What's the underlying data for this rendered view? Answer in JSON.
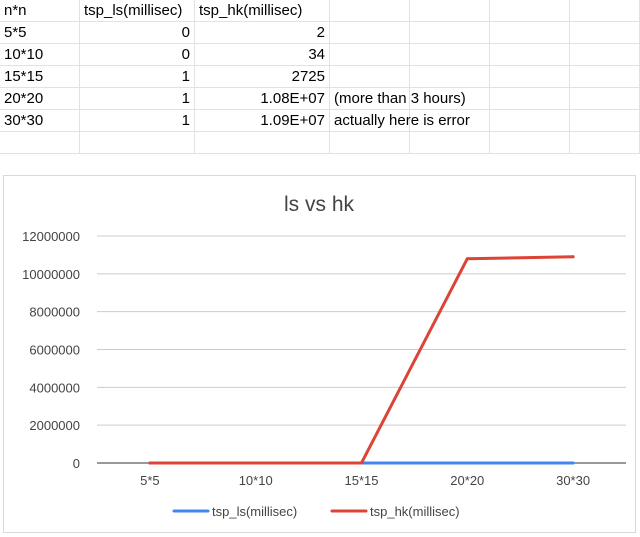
{
  "sheet": {
    "header": [
      "n*n",
      "tsp_ls(millisec)",
      "tsp_hk(millisec)",
      "",
      "",
      "",
      "",
      ""
    ],
    "rows": [
      [
        "5*5",
        "0",
        "2",
        "",
        "",
        "",
        "",
        ""
      ],
      [
        "10*10",
        "0",
        "34",
        "",
        "",
        "",
        "",
        ""
      ],
      [
        "15*15",
        "1",
        "2725",
        "",
        "",
        "",
        "",
        ""
      ],
      [
        "20*20",
        "1",
        "1.08E+07",
        "(more than 3 hours)",
        "",
        "",
        "",
        ""
      ],
      [
        "30*30",
        "1",
        "1.09E+07",
        "actually here is error",
        "",
        "",
        "",
        ""
      ],
      [
        "",
        "",
        "",
        "",
        "",
        "",
        "",
        ""
      ]
    ]
  },
  "chart_data": {
    "type": "line",
    "title": "ls vs hk",
    "categories": [
      "5*5",
      "10*10",
      "15*15",
      "20*20",
      "30*30"
    ],
    "series": [
      {
        "name": "tsp_ls(millisec)",
        "values": [
          0,
          0,
          1,
          1,
          1
        ],
        "color": "#4285f4"
      },
      {
        "name": "tsp_hk(millisec)",
        "values": [
          2,
          34,
          2725,
          10800000,
          10900000
        ],
        "color": "#db4437"
      }
    ],
    "yticks": [
      0,
      2000000,
      4000000,
      6000000,
      8000000,
      10000000,
      12000000
    ],
    "ylim": [
      0,
      12000000
    ],
    "grid": true,
    "legend": "bottom"
  }
}
